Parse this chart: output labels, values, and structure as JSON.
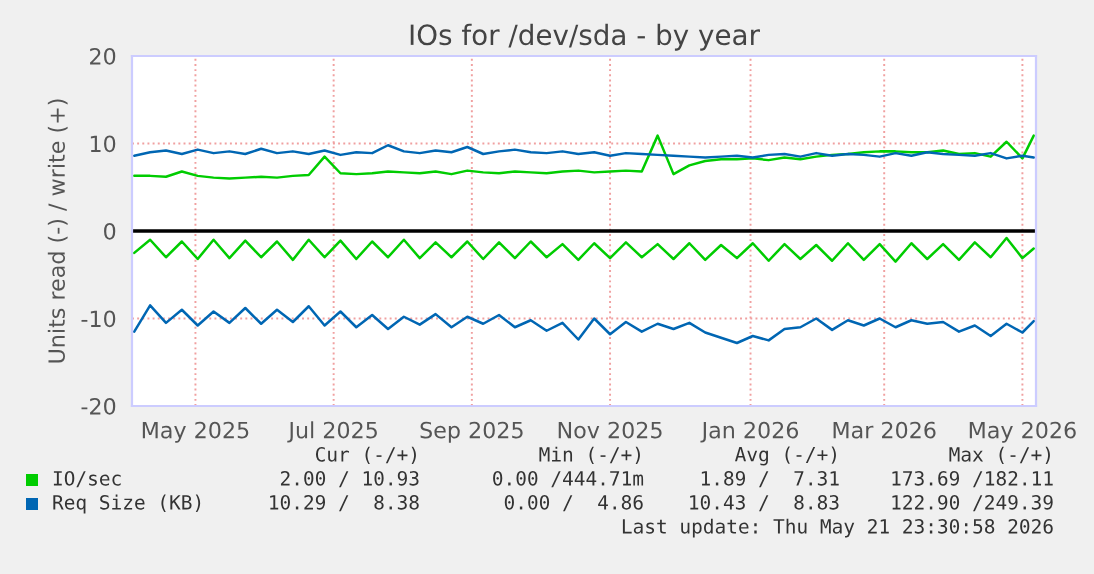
{
  "chart_data": {
    "type": "line",
    "title": "IOs for /dev/sda - by year",
    "ylabel": "Units read (-) / write (+)",
    "x": [
      "2025-04-19",
      "2025-04-26",
      "2025-05-03",
      "2025-05-10",
      "2025-05-17",
      "2025-05-24",
      "2025-05-31",
      "2025-06-07",
      "2025-06-14",
      "2025-06-21",
      "2025-06-28",
      "2025-07-05",
      "2025-07-12",
      "2025-07-19",
      "2025-07-26",
      "2025-08-02",
      "2025-08-09",
      "2025-08-16",
      "2025-08-23",
      "2025-08-30",
      "2025-09-06",
      "2025-09-13",
      "2025-09-20",
      "2025-09-27",
      "2025-10-04",
      "2025-10-11",
      "2025-10-18",
      "2025-10-25",
      "2025-11-01",
      "2025-11-08",
      "2025-11-15",
      "2025-11-22",
      "2025-11-29",
      "2025-12-06",
      "2025-12-13",
      "2025-12-20",
      "2025-12-27",
      "2026-01-03",
      "2026-01-10",
      "2026-01-17",
      "2026-01-24",
      "2026-01-31",
      "2026-02-07",
      "2026-02-14",
      "2026-02-21",
      "2026-02-28",
      "2026-03-07",
      "2026-03-14",
      "2026-03-21",
      "2026-03-28",
      "2026-04-04",
      "2026-04-11",
      "2026-04-18",
      "2026-04-25",
      "2026-05-02",
      "2026-05-09",
      "2026-05-16",
      "2026-05-21"
    ],
    "series": [
      {
        "name": "IO/sec",
        "color": "#00cc00",
        "values": [
          6.3,
          6.3,
          6.2,
          6.8,
          6.3,
          6.1,
          6.0,
          6.1,
          6.2,
          6.1,
          6.3,
          6.4,
          8.5,
          6.6,
          6.5,
          6.6,
          6.8,
          6.7,
          6.6,
          6.8,
          6.5,
          6.9,
          6.7,
          6.6,
          6.8,
          6.7,
          6.6,
          6.8,
          6.9,
          6.7,
          6.8,
          6.9,
          6.8,
          10.9,
          6.5,
          7.5,
          8.0,
          8.2,
          8.2,
          8.3,
          8.1,
          8.4,
          8.2,
          8.5,
          8.7,
          8.8,
          9.0,
          9.1,
          9.1,
          9.0,
          9.0,
          9.2,
          8.8,
          8.9,
          8.5,
          10.2,
          8.3,
          10.9
        ]
      },
      {
        "color": "#00cc00",
        "values": [
          -2.5,
          -1.0,
          -3.0,
          -1.2,
          -3.2,
          -1.0,
          -3.1,
          -1.1,
          -3.0,
          -1.2,
          -3.3,
          -1.0,
          -3.0,
          -1.1,
          -3.2,
          -1.2,
          -3.0,
          -1.0,
          -3.1,
          -1.3,
          -3.0,
          -1.2,
          -3.2,
          -1.3,
          -3.1,
          -1.2,
          -3.0,
          -1.5,
          -3.3,
          -1.4,
          -3.1,
          -1.3,
          -3.0,
          -1.5,
          -3.2,
          -1.4,
          -3.3,
          -1.6,
          -3.1,
          -1.4,
          -3.4,
          -1.5,
          -3.2,
          -1.6,
          -3.4,
          -1.4,
          -3.3,
          -1.5,
          -3.5,
          -1.4,
          -3.2,
          -1.5,
          -3.3,
          -1.3,
          -3.0,
          -0.8,
          -3.1,
          -2.0
        ]
      },
      {
        "name": "Req Size (KB)",
        "color": "#0066b3",
        "values": [
          8.6,
          9.0,
          9.2,
          8.8,
          9.3,
          8.9,
          9.1,
          8.8,
          9.4,
          8.9,
          9.1,
          8.8,
          9.2,
          8.7,
          9.0,
          8.9,
          9.8,
          9.1,
          8.9,
          9.2,
          9.0,
          9.6,
          8.8,
          9.1,
          9.3,
          9.0,
          8.9,
          9.1,
          8.8,
          9.0,
          8.6,
          8.9,
          8.8,
          8.7,
          8.6,
          8.5,
          8.4,
          8.5,
          8.6,
          8.4,
          8.7,
          8.8,
          8.5,
          8.9,
          8.6,
          8.8,
          8.7,
          8.5,
          8.9,
          8.6,
          9.0,
          8.8,
          8.7,
          8.6,
          8.9,
          8.3,
          8.6,
          8.4
        ]
      },
      {
        "color": "#0066b3",
        "values": [
          -11.5,
          -8.5,
          -10.5,
          -9.0,
          -10.8,
          -9.2,
          -10.5,
          -8.8,
          -10.6,
          -9.0,
          -10.4,
          -8.6,
          -10.8,
          -9.2,
          -11.0,
          -9.6,
          -11.2,
          -9.8,
          -10.7,
          -9.5,
          -11.0,
          -9.8,
          -10.6,
          -9.6,
          -11.0,
          -10.2,
          -11.4,
          -10.5,
          -12.4,
          -10.0,
          -11.8,
          -10.4,
          -11.5,
          -10.6,
          -11.2,
          -10.5,
          -11.6,
          -12.2,
          -12.8,
          -12.0,
          -12.5,
          -11.2,
          -11.0,
          -10.0,
          -11.3,
          -10.2,
          -10.8,
          -10.0,
          -11.0,
          -10.2,
          -10.6,
          -10.4,
          -11.5,
          -10.8,
          -12.0,
          -10.6,
          -11.6,
          -10.3
        ]
      }
    ],
    "xlim": [
      "2025-04-18",
      "2026-05-22"
    ],
    "xticks": [
      {
        "value": "2025-05-16",
        "label": "May 2025"
      },
      {
        "value": "2025-07-16",
        "label": "Jul 2025"
      },
      {
        "value": "2025-09-15",
        "label": "Sep 2025"
      },
      {
        "value": "2025-11-15",
        "label": "Nov 2025"
      },
      {
        "value": "2026-01-16",
        "label": "Jan 2026"
      },
      {
        "value": "2026-03-16",
        "label": "Mar 2026"
      },
      {
        "value": "2026-05-16",
        "label": "May 2026"
      }
    ],
    "ylim": [
      -20,
      20
    ],
    "yticks": [
      -20,
      -10,
      0,
      10,
      20
    ],
    "ref_lines": [
      {
        "axis": "y",
        "value": 0,
        "color": "#000000"
      }
    ],
    "grid": true,
    "legend": "bottom",
    "annotations": [
      "Cur (-/+)",
      "Min (-/+)",
      "Avg (-/+)",
      "Max (-/+)",
      "2.00 / 10.93",
      "0.00 /444.71m",
      "1.89 /  7.31",
      "173.69 /182.11",
      "10.29 /  8.38",
      "0.00 /  4.86",
      "10.43 /  8.83",
      "122.90 /249.39",
      "Last update: Thu May 21 23:30:58 2026"
    ]
  }
}
